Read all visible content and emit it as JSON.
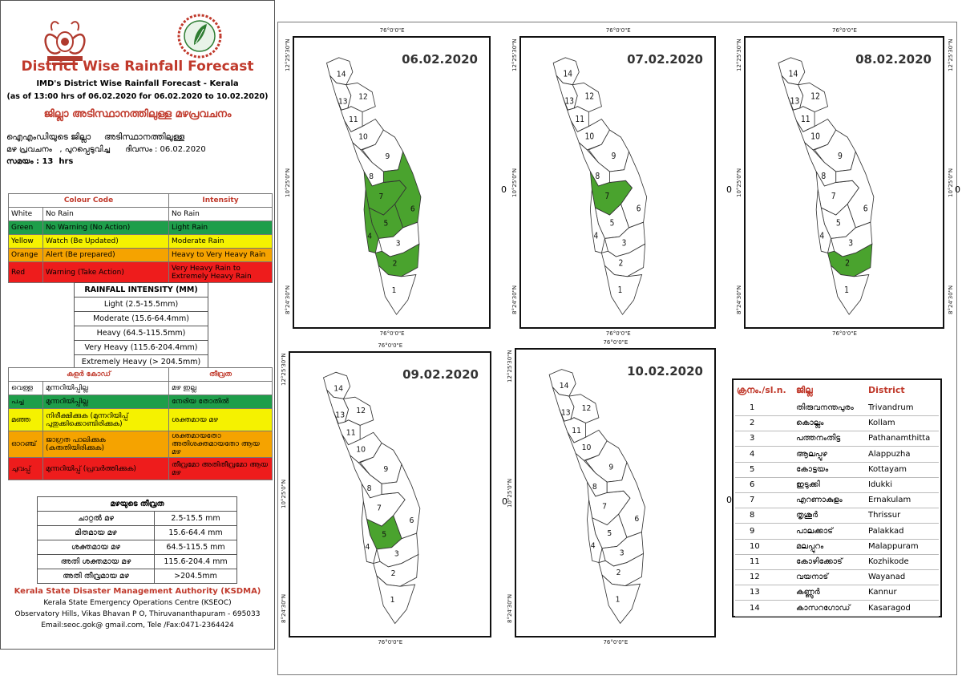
{
  "outer_frame": true,
  "header": {
    "title": "District Wise Rainfall Forecast",
    "subtitle": "IMD's District Wise Rainfall Forecast - Kerala",
    "period": "(as of 13:00 hrs of 06.02.2020  for 06.02.2020  to 10.02.2020)",
    "title_ml": "ജില്ലാ അടിസ്ഥാനത്തിലുള്ള മഴപ്രവചനം",
    "note_ml_line1": "ഐഎംഡിയുടെ ജില്ലാ     അടിസ്ഥാനത്തിലുള്ള",
    "note_ml_line2": "മഴ പ്രവചനം   , പുറപ്പെടുവിച്ച      ദിവസം : 06.02.2020",
    "note_ml_line3": "സമയം : 13  hrs"
  },
  "colour_code_table": {
    "headers": [
      "Colour Code",
      "Intensity"
    ],
    "rows": [
      {
        "colour": "White",
        "action": "No Rain",
        "intensity": "No Rain",
        "bg": "#ffffff"
      },
      {
        "colour": "Green",
        "action": "No Warning (No Action)",
        "intensity": "Light Rain",
        "bg": "#1e9e4a"
      },
      {
        "colour": "Yellow",
        "action": "Watch (Be Updated)",
        "intensity": "Moderate Rain",
        "bg": "#f5f200"
      },
      {
        "colour": "Orange",
        "action": "Alert (Be prepared)",
        "intensity": "Heavy to Very Heavy Rain",
        "bg": "#f5a300"
      },
      {
        "colour": "Red",
        "action": "Warning (Take Action)",
        "intensity": "Very Heavy Rain to Extremely Heavy Rain",
        "bg": "#ee1c1c"
      }
    ]
  },
  "intensity_table": {
    "title": "RAINFALL INTENSITY (MM)",
    "rows": [
      "Light (2.5-15.5mm)",
      "Moderate (15.6-64.4mm)",
      "Heavy (64.5-115.5mm)",
      "Very Heavy (115.6-204.4mm)",
      "Extremely Heavy (> 204.5mm)"
    ]
  },
  "colour_code_table_ml": {
    "headers": [
      "കളർ കോഡ്",
      "തീവ്രത"
    ],
    "rows": [
      {
        "colour": "വെള്ള",
        "action": "മുന്നറിയിപ്പില്ല",
        "intensity": "മഴ ഇല്ല",
        "bg": "#ffffff"
      },
      {
        "colour": "പച്ച",
        "action": "മുന്നറിയിപ്പില്ല",
        "intensity": "നേരിയ തോതിൽ",
        "bg": "#1e9e4a"
      },
      {
        "colour": "മഞ്ഞ",
        "action": "നിരീക്ഷിക്കുക (മുന്നറിയിപ്പ് പുതുക്കിക്കൊണ്ടിരിക്കുക)",
        "intensity": "ശക്തമായ മഴ",
        "bg": "#f5f200"
      },
      {
        "colour": "ഓറഞ്ച്",
        "action": "ജാഗ്രത പാലിക്കുക (കരുതിയിരിക്കുക)",
        "intensity": "ശക്തമായതോ അതിശക്തമായതോ ആയ മഴ",
        "bg": "#f5a300"
      },
      {
        "colour": "ചുവപ്പ്",
        "action": "മുന്നറിയിപ്പ് (പ്രവർത്തിക്കുക)",
        "intensity": "തീവ്രമോ അതിതീവ്രമോ ആയ മഴ",
        "bg": "#ee1c1c"
      }
    ]
  },
  "intensity_table_ml": {
    "title": "മഴയുടെ തീവ്രത",
    "rows": [
      {
        "label": "ചാറ്റൽ മഴ",
        "range": "2.5-15.5 mm"
      },
      {
        "label": "മിതമായ മഴ",
        "range": "15.6-64.4 mm"
      },
      {
        "label": "ശക്തമായ മഴ",
        "range": "64.5-115.5 mm"
      },
      {
        "label": "അതി ശക്തമായ മഴ",
        "range": "115.6-204.4 mm"
      },
      {
        "label": "അതി തീവ്രമായ മഴ",
        "range": ">204.5mm"
      }
    ]
  },
  "footer": {
    "org": "Kerala State Disaster Management Authority (KSDMA)",
    "line1": "Kerala State Emergency Operations Centre (KSEOC)",
    "line2": "Observatory Hills, Vikas Bhavan P O, Thiruvananthapuram - 695033",
    "line3": "Email:seoc.gok@ gmail.com, Tele /Fax:0471-2364424"
  },
  "coordinates": {
    "lon": "76°0'0\"E",
    "lat_n": "12°25'30\"N",
    "lat_m": "10°25'0\"N",
    "lat_s": "8°24'30\"N",
    "zero": "0"
  },
  "maps": [
    {
      "date": "06.02.2020",
      "green_districts": [
        2,
        4,
        5,
        6,
        7
      ]
    },
    {
      "date": "07.02.2020",
      "green_districts": [
        7
      ]
    },
    {
      "date": "08.02.2020",
      "green_districts": [
        2
      ]
    },
    {
      "date": "09.02.2020",
      "green_districts": [
        5
      ]
    },
    {
      "date": "10.02.2020",
      "green_districts": []
    }
  ],
  "map_colors": {
    "green": "#4aa32e",
    "white": "#ffffff",
    "border": "#333333"
  },
  "district_legend": {
    "headers": [
      "ക്രനം./sl.n.",
      "ജില്ല",
      "District"
    ],
    "rows": [
      {
        "no": "1",
        "ml": "തിരുവനന്തപുരം",
        "en": "Trivandrum"
      },
      {
        "no": "2",
        "ml": "കൊല്ലം",
        "en": "Kollam"
      },
      {
        "no": "3",
        "ml": "പത്തനംതിട്ട",
        "en": "Pathanamthitta"
      },
      {
        "no": "4",
        "ml": "ആലപ്പുഴ",
        "en": "Alappuzha"
      },
      {
        "no": "5",
        "ml": "കോട്ടയം",
        "en": "Kottayam"
      },
      {
        "no": "6",
        "ml": "ഇടുക്കി",
        "en": "Idukki"
      },
      {
        "no": "7",
        "ml": "എറണാകുളം",
        "en": "Ernakulam"
      },
      {
        "no": "8",
        "ml": "തൃശൂർ",
        "en": "Thrissur"
      },
      {
        "no": "9",
        "ml": "പാലക്കാട്",
        "en": "Palakkad"
      },
      {
        "no": "10",
        "ml": "മലപ്പുറം",
        "en": "Malappuram"
      },
      {
        "no": "11",
        "ml": "കോഴിക്കോട്",
        "en": "Kozhikode"
      },
      {
        "no": "12",
        "ml": "വയനാട്",
        "en": "Wayanad"
      },
      {
        "no": "13",
        "ml": "കണ്ണൂർ",
        "en": "Kannur"
      },
      {
        "no": "14",
        "ml": "കാസറഗോഡ്",
        "en": "Kasaragod"
      }
    ]
  }
}
